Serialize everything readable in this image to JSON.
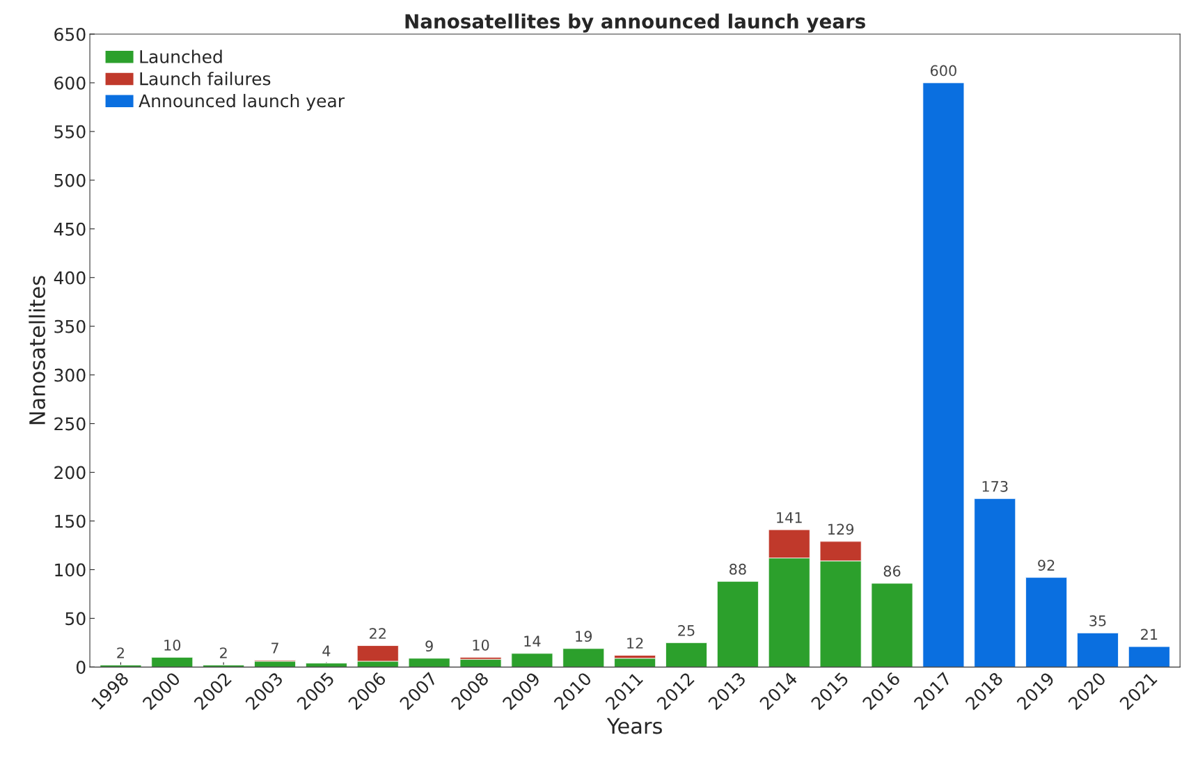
{
  "chart_data": {
    "type": "bar",
    "title": "Nanosatellites by announced launch years",
    "xlabel": "Years",
    "ylabel": "Nanosatellites",
    "categories": [
      "1998",
      "2000",
      "2002",
      "2003",
      "2005",
      "2006",
      "2007",
      "2008",
      "2009",
      "2010",
      "2011",
      "2012",
      "2013",
      "2014",
      "2015",
      "2016",
      "2017",
      "2018",
      "2019",
      "2020",
      "2021"
    ],
    "stacked": true,
    "series": [
      {
        "name": "Launched",
        "color": "#2ca02c",
        "values": [
          2,
          10,
          2,
          6,
          4,
          6,
          9,
          8,
          14,
          19,
          9,
          25,
          88,
          112,
          109,
          86,
          null,
          null,
          null,
          null,
          null
        ]
      },
      {
        "name": "Launch failures",
        "color": "#c0392b",
        "values": [
          null,
          null,
          null,
          1,
          null,
          16,
          null,
          2,
          null,
          null,
          3,
          null,
          null,
          29,
          20,
          null,
          null,
          null,
          null,
          null,
          null
        ]
      },
      {
        "name": "Announced launch year",
        "color": "#0a6fe0",
        "values": [
          null,
          null,
          null,
          null,
          null,
          null,
          null,
          null,
          null,
          null,
          null,
          null,
          null,
          null,
          null,
          null,
          600,
          173,
          92,
          35,
          21
        ]
      }
    ],
    "totals": [
      "2",
      "10",
      "2",
      "7",
      "4",
      "22",
      "9",
      "10",
      "14",
      "19",
      "12",
      "25",
      "88",
      "141",
      "129",
      "86",
      "600",
      "173",
      "92",
      "35",
      "21"
    ],
    "ylim": [
      0,
      650
    ],
    "yticks": [
      0,
      50,
      100,
      150,
      200,
      250,
      300,
      350,
      400,
      450,
      500,
      550,
      600,
      650
    ],
    "grid": false,
    "legend": "top left"
  }
}
